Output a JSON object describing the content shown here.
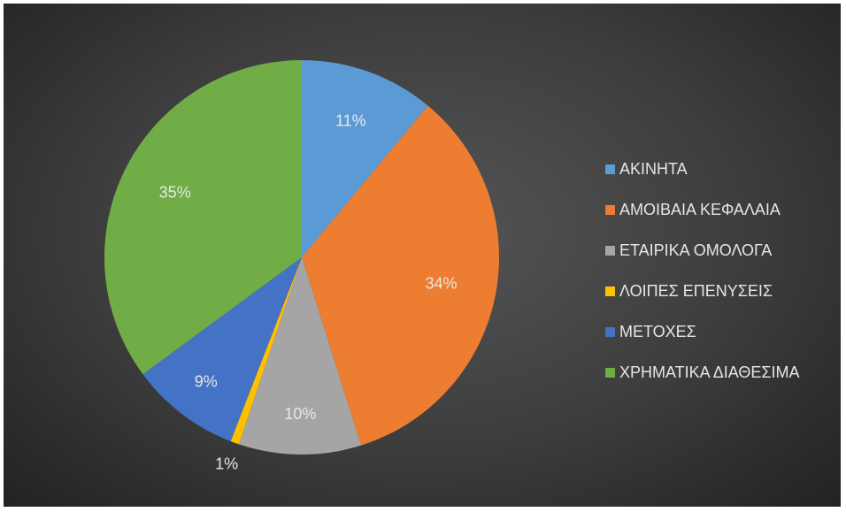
{
  "chart_data": {
    "type": "pie",
    "title": "",
    "start_angle_deg": 0,
    "direction": "clockwise",
    "legend_position": "right",
    "colors": {
      "background_center": "#555555",
      "background_edge": "#222222",
      "label_text": "#e8e8e8"
    },
    "slices": [
      {
        "name": "ΑΚΙΝΗΤΑ",
        "value": 11,
        "label": "11%",
        "color": "#5b9bd5"
      },
      {
        "name": "ΑΜΟΙΒΑΙΑ ΚΕΦΑΛΑΙΑ",
        "value": 34,
        "label": "34%",
        "color": "#ed7d31"
      },
      {
        "name": "ΕΤΑΙΡΙΚΑ ΟΜΟΛΟΓΑ",
        "value": 10,
        "label": "10%",
        "color": "#a5a5a5"
      },
      {
        "name": "ΛΟΙΠΕΣ ΕΠΕΝΥΣΕΙΣ",
        "value": 0.7,
        "label": "1%",
        "color": "#ffc000"
      },
      {
        "name": "ΜΕΤΟΧΕΣ",
        "value": 9,
        "label": "9%",
        "color": "#4472c4"
      },
      {
        "name": "ΧΡΗΜΑΤΙΚΑ ΔΙΑΘΕΣΙΜΑ",
        "value": 35,
        "label": "35%",
        "color": "#70ad47"
      }
    ]
  }
}
